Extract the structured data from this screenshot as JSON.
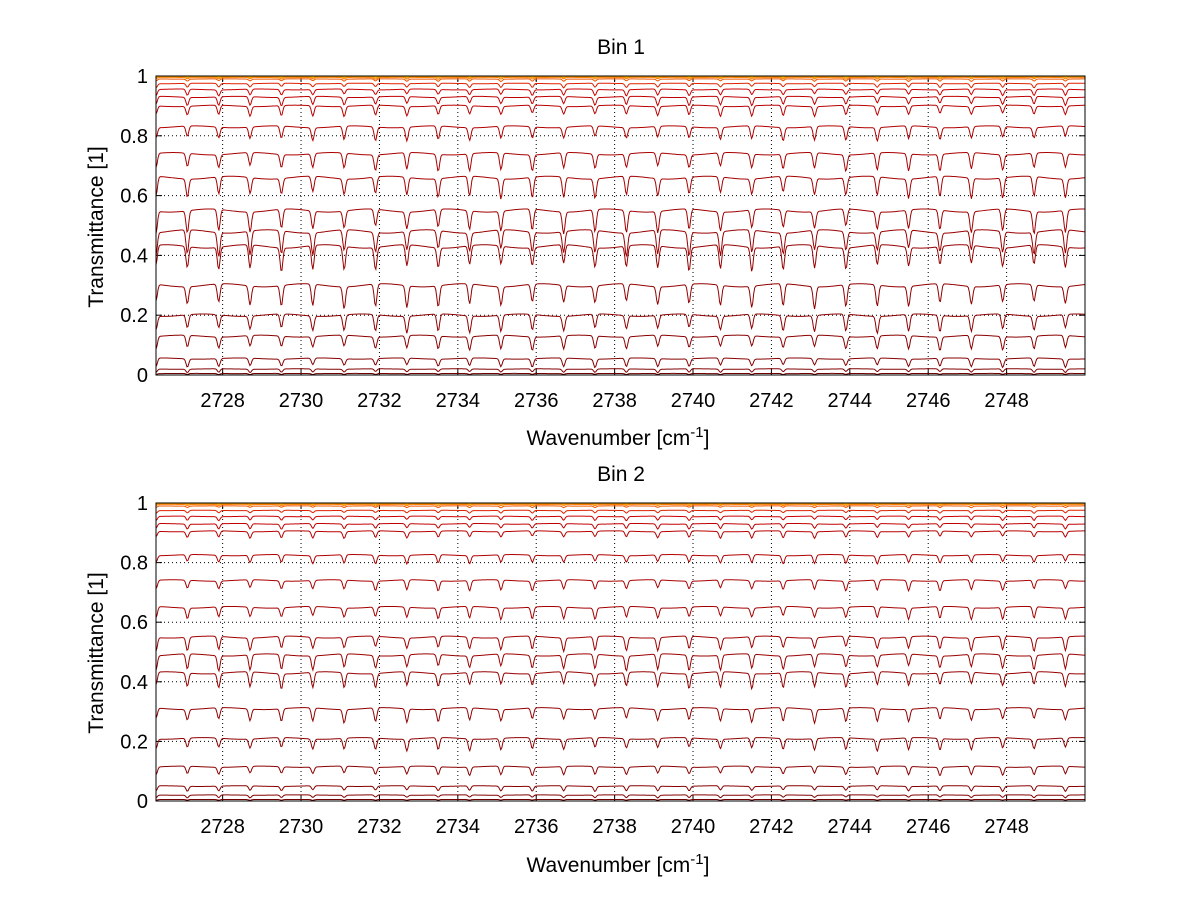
{
  "chart_data": [
    {
      "type": "line",
      "title": "Bin 1",
      "xlabel": "Wavenumber [cm",
      "xlabel_sup": "-1",
      "xlabel_end": "]",
      "ylabel": "Transmittance [1]",
      "xlim": [
        2726.3,
        2750.0
      ],
      "ylim": [
        0,
        1
      ],
      "xticks": [
        "2728",
        "2730",
        "2732",
        "2734",
        "2736",
        "2738",
        "2740",
        "2742",
        "2744",
        "2746",
        "2748"
      ],
      "yticks": [
        "0",
        "0.2",
        "0.4",
        "0.6",
        "0.8",
        "1"
      ],
      "grid": true,
      "legend": "none",
      "line_spacing_cm-1": 0.8,
      "series": [
        {
          "baseline": 1.0,
          "depth": 0.003,
          "color": "#f0c800"
        },
        {
          "baseline": 0.998,
          "depth": 0.004,
          "color": "#f5a000"
        },
        {
          "baseline": 0.995,
          "depth": 0.005,
          "color": "#ff8000"
        },
        {
          "baseline": 0.99,
          "depth": 0.007,
          "color": "#ee5500"
        },
        {
          "baseline": 0.975,
          "depth": 0.012,
          "color": "#dd2200"
        },
        {
          "baseline": 0.955,
          "depth": 0.018,
          "color": "#cc0000"
        },
        {
          "baseline": 0.93,
          "depth": 0.025,
          "color": "#c00000"
        },
        {
          "baseline": 0.9,
          "depth": 0.03,
          "color": "#b80000"
        },
        {
          "baseline": 0.83,
          "depth": 0.04,
          "color": "#b00000"
        },
        {
          "baseline": 0.74,
          "depth": 0.05,
          "color": "#aa0000"
        },
        {
          "baseline": 0.66,
          "depth": 0.06,
          "color": "#a50000"
        },
        {
          "baseline": 0.55,
          "depth": 0.065,
          "color": "#a00000"
        },
        {
          "baseline": 0.48,
          "depth": 0.07,
          "color": "#9a0000"
        },
        {
          "baseline": 0.43,
          "depth": 0.07,
          "color": "#960000"
        },
        {
          "baseline": 0.3,
          "depth": 0.065,
          "color": "#920000"
        },
        {
          "baseline": 0.2,
          "depth": 0.05,
          "color": "#8e0000"
        },
        {
          "baseline": 0.13,
          "depth": 0.04,
          "color": "#8a0000"
        },
        {
          "baseline": 0.055,
          "depth": 0.025,
          "color": "#860000"
        },
        {
          "baseline": 0.02,
          "depth": 0.01,
          "color": "#800000"
        },
        {
          "baseline": 0.005,
          "depth": 0.003,
          "color": "#700000"
        }
      ]
    },
    {
      "type": "line",
      "title": "Bin 2",
      "xlabel": "Wavenumber [cm",
      "xlabel_sup": "-1",
      "xlabel_end": "]",
      "ylabel": "Transmittance [1]",
      "xlim": [
        2726.3,
        2750.0
      ],
      "ylim": [
        0,
        1
      ],
      "xticks": [
        "2728",
        "2730",
        "2732",
        "2734",
        "2736",
        "2738",
        "2740",
        "2742",
        "2744",
        "2746",
        "2748"
      ],
      "yticks": [
        "0",
        "0.2",
        "0.4",
        "0.6",
        "0.8",
        "1"
      ],
      "grid": true,
      "legend": "none",
      "line_spacing_cm-1": 0.8,
      "series": [
        {
          "baseline": 1.0,
          "depth": 0.002,
          "color": "#f0c800"
        },
        {
          "baseline": 0.998,
          "depth": 0.003,
          "color": "#f5a000"
        },
        {
          "baseline": 0.995,
          "depth": 0.004,
          "color": "#ff8000"
        },
        {
          "baseline": 0.99,
          "depth": 0.005,
          "color": "#ee5500"
        },
        {
          "baseline": 0.975,
          "depth": 0.008,
          "color": "#dd2200"
        },
        {
          "baseline": 0.955,
          "depth": 0.012,
          "color": "#cc0000"
        },
        {
          "baseline": 0.93,
          "depth": 0.015,
          "color": "#c00000"
        },
        {
          "baseline": 0.905,
          "depth": 0.02,
          "color": "#b80000"
        },
        {
          "baseline": 0.825,
          "depth": 0.025,
          "color": "#b00000"
        },
        {
          "baseline": 0.74,
          "depth": 0.03,
          "color": "#aa0000"
        },
        {
          "baseline": 0.65,
          "depth": 0.035,
          "color": "#a50000"
        },
        {
          "baseline": 0.55,
          "depth": 0.04,
          "color": "#a00000"
        },
        {
          "baseline": 0.49,
          "depth": 0.045,
          "color": "#9a0000"
        },
        {
          "baseline": 0.43,
          "depth": 0.045,
          "color": "#960000"
        },
        {
          "baseline": 0.31,
          "depth": 0.04,
          "color": "#920000"
        },
        {
          "baseline": 0.21,
          "depth": 0.035,
          "color": "#8e0000"
        },
        {
          "baseline": 0.115,
          "depth": 0.025,
          "color": "#8a0000"
        },
        {
          "baseline": 0.05,
          "depth": 0.015,
          "color": "#860000"
        },
        {
          "baseline": 0.02,
          "depth": 0.008,
          "color": "#800000"
        },
        {
          "baseline": 0.005,
          "depth": 0.002,
          "color": "#700000"
        }
      ]
    }
  ]
}
